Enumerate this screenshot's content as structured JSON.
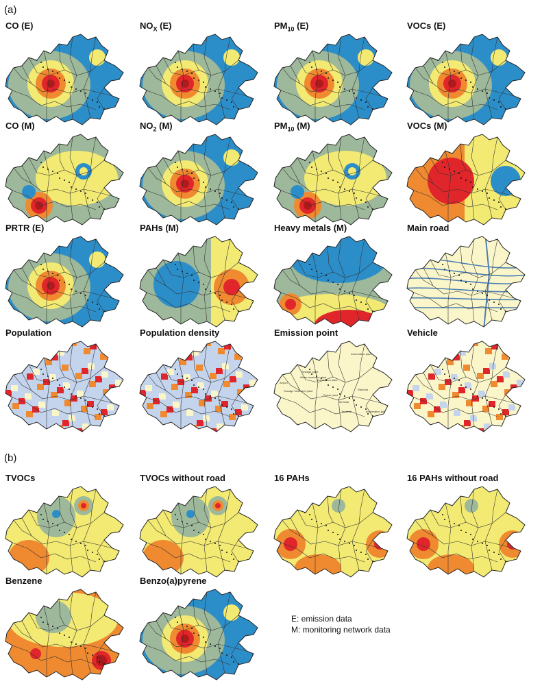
{
  "sections": {
    "a": "(a)",
    "b": "(b)"
  },
  "panels_a": [
    {
      "id": "co-e",
      "title": "CO (E)",
      "kind": "blue"
    },
    {
      "id": "nox-e",
      "title": "NO",
      "sub": "X",
      "suffix": " (E)",
      "kind": "blue"
    },
    {
      "id": "pm10-e",
      "title": "PM",
      "sub": "10",
      "suffix": " (E)",
      "kind": "blue"
    },
    {
      "id": "vocs-e",
      "title": "VOCs (E)",
      "kind": "blue"
    },
    {
      "id": "co-m",
      "title": "CO (M)",
      "kind": "mixed"
    },
    {
      "id": "no2-m",
      "title": "NO",
      "sub": "2",
      "suffix": " (M)",
      "kind": "blue"
    },
    {
      "id": "pm10-m",
      "title": "PM",
      "sub": "10",
      "suffix": " (M)",
      "kind": "mixed"
    },
    {
      "id": "vocs-m",
      "title": "VOCs (M)",
      "kind": "orange"
    },
    {
      "id": "prtr-e",
      "title": "PRTR (E)",
      "kind": "blue"
    },
    {
      "id": "pahs-m",
      "title": "PAHs (M)",
      "kind": "green"
    },
    {
      "id": "heavy-metals-m",
      "title": "Heavy metals (M)",
      "kind": "heavy"
    },
    {
      "id": "main-road",
      "title": "Main road",
      "kind": "road"
    },
    {
      "id": "population",
      "title": "Population",
      "kind": "pop"
    },
    {
      "id": "population-density",
      "title": "Population density",
      "kind": "pop"
    },
    {
      "id": "emission-point",
      "title": "Emission point",
      "kind": "emission"
    },
    {
      "id": "vehicle",
      "title": "Vehicle",
      "kind": "vehicle"
    }
  ],
  "panels_b": [
    {
      "id": "tvocs",
      "title": "TVOCs",
      "kind": "yellow"
    },
    {
      "id": "tvocs-without-road",
      "title": "TVOCs without road",
      "kind": "yellow"
    },
    {
      "id": "16-pahs",
      "title": "16 PAHs",
      "kind": "yellowred"
    },
    {
      "id": "16-pahs-without-road",
      "title": "16 PAHs without road",
      "kind": "yellowred"
    },
    {
      "id": "benzene",
      "title": "Benzene",
      "kind": "benzene"
    },
    {
      "id": "benzo-a-pyrene",
      "title": "Benzo(a)pyrene",
      "kind": "blue"
    }
  ],
  "emission_labels": [
    "Incineration plant",
    "Sewage plant",
    "Water treatment plant",
    "Sewage treatment plant",
    "Airport",
    "Incineration plant",
    "Power plant",
    "Terminal",
    "Terminal",
    "Railroad",
    "Incineration plant"
  ],
  "legend": {
    "line1": "E: emission data",
    "line2": "M: monitoring network data"
  },
  "colors": {
    "blue": "#2c8ec9",
    "green": "#9db89a",
    "yellow": "#f2ea73",
    "orange": "#f08a30",
    "red": "#e0262a",
    "pale": "#fbf6c9",
    "lightblue": "#c4d4ec",
    "road": "#4a7fb5"
  }
}
